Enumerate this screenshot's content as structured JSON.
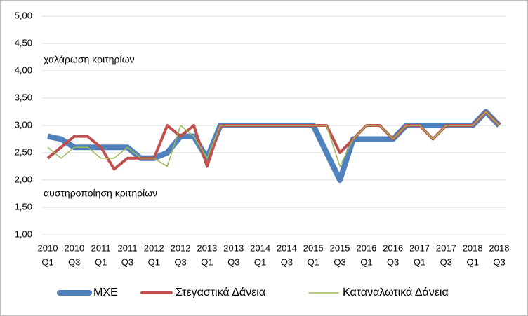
{
  "chart_data": {
    "type": "line",
    "annotations": [
      "χαλάρωση κριτηρίων",
      "αυστηροποίηση κριτηρίων"
    ],
    "categories": [
      [
        "2010",
        "Q1"
      ],
      null,
      [
        "2010",
        "Q3"
      ],
      null,
      [
        "2011",
        "Q1"
      ],
      null,
      [
        "2011",
        "Q3"
      ],
      null,
      [
        "2012",
        "Q1"
      ],
      null,
      [
        "2012",
        "Q3"
      ],
      null,
      [
        "2013",
        "Q1"
      ],
      null,
      [
        "2013",
        "Q3"
      ],
      null,
      [
        "2014",
        "Q1"
      ],
      null,
      [
        "2014",
        "Q3"
      ],
      null,
      [
        "2015",
        "Q1"
      ],
      null,
      [
        "2015",
        "Q3"
      ],
      null,
      [
        "2016",
        "Q1"
      ],
      null,
      [
        "2016",
        "Q3"
      ],
      null,
      [
        "2017",
        "Q1"
      ],
      null,
      [
        "2017",
        "Q3"
      ],
      null,
      [
        "2018",
        "Q1"
      ],
      null,
      [
        "2018",
        "Q3"
      ]
    ],
    "series": [
      {
        "name": "ΜΧΕ",
        "color": "#4f81bd",
        "width": 8,
        "values": [
          2.8,
          2.75,
          2.6,
          2.6,
          2.6,
          2.6,
          2.6,
          2.4,
          2.4,
          2.5,
          2.8,
          2.8,
          2.4,
          3,
          3,
          3,
          3,
          3,
          3,
          3,
          3,
          2.5,
          2,
          2.75,
          2.75,
          2.75,
          2.75,
          3,
          3,
          3,
          3,
          3,
          3,
          3.25,
          3
        ]
      },
      {
        "name": "Στεγαστικά Δάνεια",
        "color": "#c0504d",
        "width": 4,
        "values": [
          2.4,
          2.6,
          2.8,
          2.8,
          2.6,
          2.2,
          2.4,
          2.4,
          2.4,
          3,
          2.8,
          3,
          2.25,
          3,
          3,
          3,
          3,
          3,
          3,
          3,
          3,
          3,
          2.5,
          2.75,
          3,
          3,
          2.75,
          3,
          3,
          2.75,
          3,
          3,
          3,
          3.25,
          3
        ]
      },
      {
        "name": "Καταναλωτικά Δάνεια",
        "color": "#9bbb59",
        "width": 1.5,
        "values": [
          2.6,
          2.4,
          2.6,
          2.6,
          2.4,
          2.4,
          2.6,
          2.4,
          2.4,
          2.25,
          3,
          2.8,
          2.4,
          3,
          3,
          3,
          3,
          3,
          3,
          3,
          3,
          3,
          2.25,
          2.75,
          3,
          3,
          2.75,
          3,
          3,
          2.75,
          3,
          3,
          3,
          3.25,
          3
        ]
      }
    ],
    "ylim": [
      1,
      5
    ],
    "yticks": [
      {
        "value": 1,
        "label": "1,00"
      },
      {
        "value": 1.5,
        "label": "1,50"
      },
      {
        "value": 2,
        "label": "2,00"
      },
      {
        "value": 2.5,
        "label": "2,50"
      },
      {
        "value": 3,
        "label": "3,00"
      },
      {
        "value": 3.5,
        "label": "3,50"
      },
      {
        "value": 4,
        "label": "4,00"
      },
      {
        "value": 4.5,
        "label": "4,50"
      },
      {
        "value": 5,
        "label": "5,00"
      }
    ],
    "grid": true,
    "legend": "bottom"
  }
}
